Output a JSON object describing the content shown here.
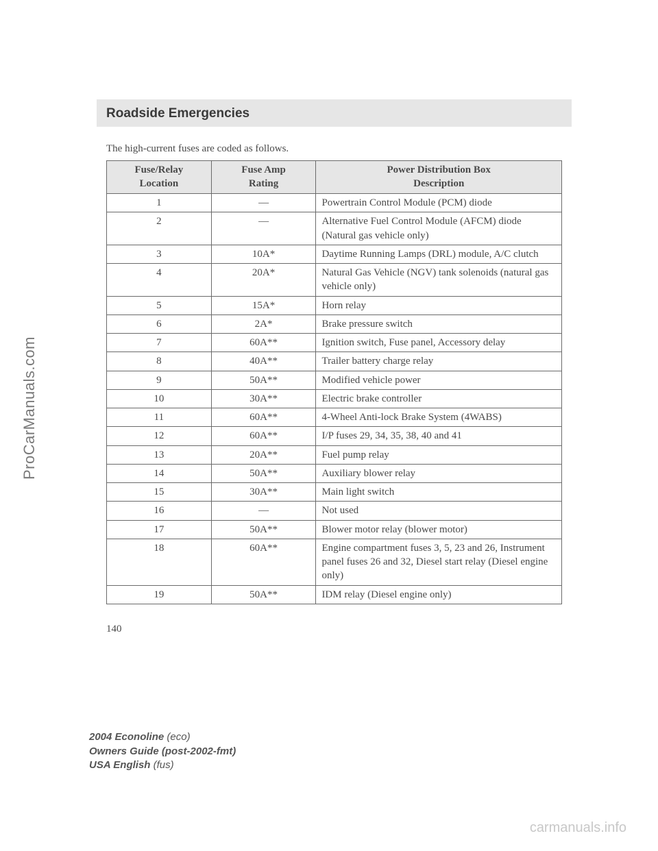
{
  "section_title": "Roadside Emergencies",
  "intro_text": "The high-current fuses are coded as follows.",
  "table": {
    "headers": {
      "col1_line1": "Fuse/Relay",
      "col1_line2": "Location",
      "col2_line1": "Fuse Amp",
      "col2_line2": "Rating",
      "col3_line1": "Power Distribution Box",
      "col3_line2": "Description"
    },
    "col_widths": [
      "23%",
      "23%",
      "54%"
    ],
    "rows": [
      {
        "loc": "1",
        "rating": "—",
        "desc": "Powertrain Control Module (PCM) diode"
      },
      {
        "loc": "2",
        "rating": "—",
        "desc": "Alternative Fuel Control Module (AFCM) diode (Natural gas vehicle only)"
      },
      {
        "loc": "3",
        "rating": "10A*",
        "desc": "Daytime Running Lamps (DRL) module, A/C clutch"
      },
      {
        "loc": "4",
        "rating": "20A*",
        "desc": "Natural Gas Vehicle (NGV) tank solenoids (natural gas vehicle only)"
      },
      {
        "loc": "5",
        "rating": "15A*",
        "desc": "Horn relay"
      },
      {
        "loc": "6",
        "rating": "2A*",
        "desc": "Brake pressure switch"
      },
      {
        "loc": "7",
        "rating": "60A**",
        "desc": "Ignition switch, Fuse panel, Accessory delay"
      },
      {
        "loc": "8",
        "rating": "40A**",
        "desc": "Trailer battery charge relay"
      },
      {
        "loc": "9",
        "rating": "50A**",
        "desc": "Modified vehicle power"
      },
      {
        "loc": "10",
        "rating": "30A**",
        "desc": "Electric brake controller"
      },
      {
        "loc": "11",
        "rating": "60A**",
        "desc": "4-Wheel Anti-lock Brake System (4WABS)"
      },
      {
        "loc": "12",
        "rating": "60A**",
        "desc": "I/P fuses 29, 34, 35, 38, 40 and 41"
      },
      {
        "loc": "13",
        "rating": "20A**",
        "desc": "Fuel pump relay"
      },
      {
        "loc": "14",
        "rating": "50A**",
        "desc": "Auxiliary blower relay"
      },
      {
        "loc": "15",
        "rating": "30A**",
        "desc": "Main light switch"
      },
      {
        "loc": "16",
        "rating": "—",
        "desc": "Not used"
      },
      {
        "loc": "17",
        "rating": "50A**",
        "desc": "Blower motor relay (blower motor)"
      },
      {
        "loc": "18",
        "rating": "60A**",
        "desc": "Engine compartment fuses 3, 5, 23 and 26, Instrument panel fuses 26 and 32, Diesel start relay (Diesel engine only)"
      },
      {
        "loc": "19",
        "rating": "50A**",
        "desc": "IDM relay (Diesel engine only)"
      }
    ]
  },
  "page_number": "140",
  "footer": {
    "line1_bold": "2004 Econoline",
    "line1_rest": " (eco)",
    "line2_bold": "Owners Guide (post-2002-fmt)",
    "line3_bold": "USA English",
    "line3_rest": " (fus)"
  },
  "sidetext": "ProCarManuals.com",
  "watermark": "carmanuals.info"
}
